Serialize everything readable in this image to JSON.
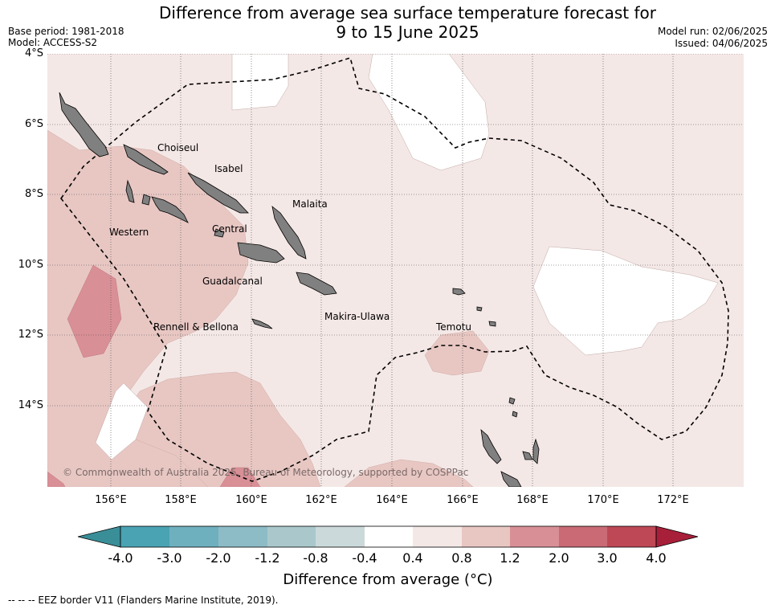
{
  "title": {
    "line1": "Difference from average sea surface temperature forecast for",
    "line2": "9 to 15 June 2025"
  },
  "meta": {
    "base_period": "Base period: 1981-2018",
    "model": "Model: ACCESS-S2",
    "model_run": "Model run: 02/06/2025",
    "issued": "Issued: 04/06/2025"
  },
  "axes": {
    "lat_labels": [
      "4°S",
      "6°S",
      "8°S",
      "10°S",
      "12°S",
      "14°S"
    ],
    "lon_labels": [
      "156°E",
      "158°E",
      "160°E",
      "162°E",
      "164°E",
      "166°E",
      "168°E",
      "170°E",
      "172°E"
    ]
  },
  "regions": {
    "choiseul": "Choiseul",
    "isabel": "Isabel",
    "malaita": "Malaita",
    "western": "Western",
    "central": "Central",
    "guadalcanal": "Guadalcanal",
    "makira_ulawa": "Makira-Ulawa",
    "temotu": "Temotu",
    "rennell_bellona": "Rennell & Bellona"
  },
  "copyright": "© Commonwealth of Australia 2025, Bureau of Meteorology, supported by COSPPac",
  "colorbar": {
    "title": "Difference from average (°C)",
    "ticks": [
      "-4.0",
      "-3.0",
      "-2.0",
      "-1.2",
      "-0.8",
      "-0.4",
      "0.4",
      "0.8",
      "1.2",
      "2.0",
      "3.0",
      "4.0"
    ],
    "colors": {
      "below_min": "#3a8e98",
      "c1": "#4aa3b3",
      "c2": "#6fb0bf",
      "c3": "#8dbcc6",
      "c4": "#aac8cc",
      "c5": "#cbd9da",
      "neutral": "#ffffff",
      "c7": "#f4e8e6",
      "c8": "#e8c7c3",
      "c9": "#d98f96",
      "c10": "#c96a75",
      "c11": "#be4855",
      "above_max": "#a81f3a"
    }
  },
  "footer": "--  --  -- EEZ border V11 (Flanders Marine Institute, 2019)."
}
